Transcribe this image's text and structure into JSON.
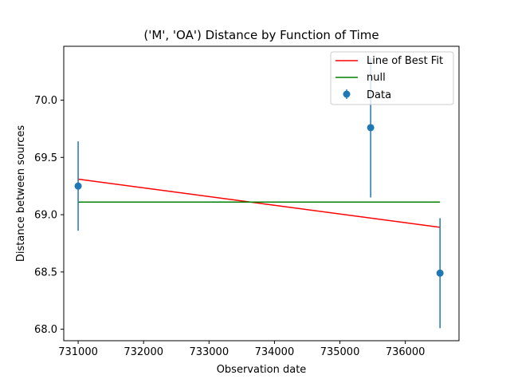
{
  "chart_data": {
    "type": "scatter",
    "title": "('M', 'OA') Distance by Function of Time",
    "xlabel": "Observation date",
    "ylabel": "Distance between sources",
    "xlim": [
      730780,
      736820
    ],
    "ylim": [
      67.9,
      70.47
    ],
    "xticks": [
      731000,
      732000,
      733000,
      734000,
      735000,
      736000
    ],
    "yticks": [
      68.0,
      68.5,
      69.0,
      69.5,
      70.0
    ],
    "ytick_labels": [
      "68.0",
      "68.5",
      "69.0",
      "69.5",
      "70.0"
    ],
    "grid": false,
    "legend_position": "top-right",
    "series": [
      {
        "name": "Line of Best Fit",
        "kind": "line",
        "color": "#ff0000",
        "x": [
          731000,
          736530
        ],
        "y": [
          69.31,
          68.89
        ]
      },
      {
        "name": "null",
        "kind": "line",
        "color": "#008000",
        "x": [
          731000,
          736530
        ],
        "y": [
          69.11,
          69.11
        ]
      },
      {
        "name": "Data",
        "kind": "errorbar",
        "color": "#1f77b4",
        "x": [
          731000,
          735470,
          736530
        ],
        "y": [
          69.25,
          69.76,
          68.49
        ],
        "yerr": [
          0.39,
          0.61,
          0.48
        ]
      }
    ]
  }
}
